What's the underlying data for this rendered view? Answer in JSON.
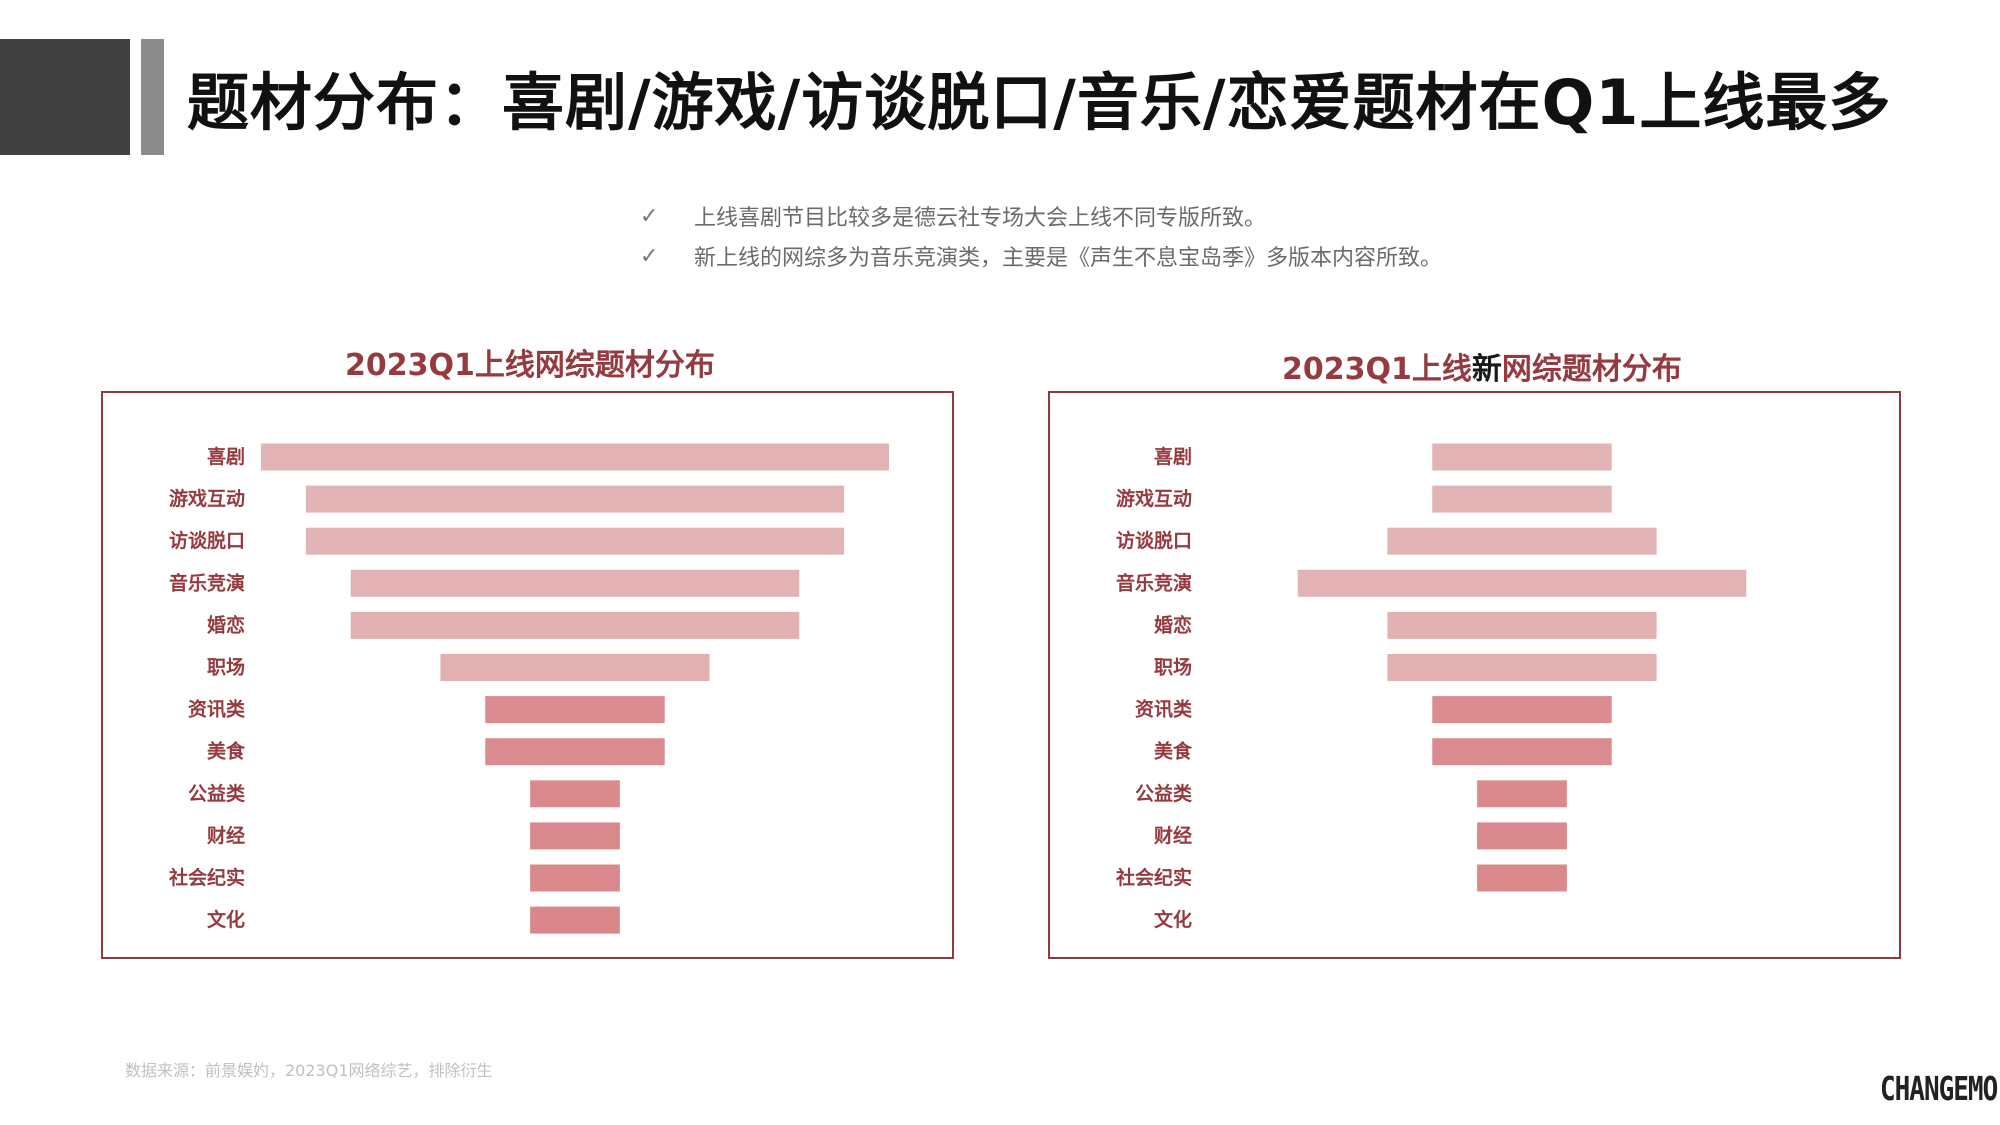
{
  "header": {
    "title": "题材分布：喜剧/游戏/访谈脱口/音乐/恋爱题材在Q1上线最多"
  },
  "bullets": [
    {
      "mark": "✓",
      "text": "上线喜剧节目比较多是德云社专场大会上线不同专版所致。"
    },
    {
      "mark": "✓",
      "text": "新上线的网综多为音乐竞演类，主要是《声生不息宝岛季》多版本内容所致。"
    }
  ],
  "colors": {
    "accent": "#953a3f",
    "bar_light": "#e0aeaf",
    "bar_dark": "#d9878b",
    "title_block": "#404040",
    "title_stripe": "#8c8c8c"
  },
  "chart_titles": {
    "left": "2023Q1上线网综题材分布",
    "right_prefix": "2023Q1上线",
    "right_highlight": "新",
    "right_suffix": "网综题材分布"
  },
  "chart_data": [
    {
      "type": "bar",
      "orientation": "horizontal-centered-funnel",
      "title": "2023Q1上线网综题材分布",
      "categories": [
        "喜剧",
        "游戏互动",
        "访谈脱口",
        "音乐竞演",
        "婚恋",
        "职场",
        "资讯类",
        "美食",
        "公益类",
        "财经",
        "社会纪实",
        "文化"
      ],
      "values": [
        14,
        12,
        12,
        10,
        10,
        6,
        4,
        4,
        2,
        2,
        2,
        2
      ],
      "value_note": "relative values estimated from bar widths; no axis printed"
    },
    {
      "type": "bar",
      "orientation": "horizontal-centered-funnel",
      "title": "2023Q1上线新网综题材分布",
      "categories": [
        "喜剧",
        "游戏互动",
        "访谈脱口",
        "音乐竞演",
        "婚恋",
        "职场",
        "资讯类",
        "美食",
        "公益类",
        "财经",
        "社会纪实",
        "文化"
      ],
      "values": [
        4,
        4,
        6,
        10,
        6,
        6,
        4,
        4,
        2,
        2,
        2,
        0
      ],
      "value_note": "relative values estimated from bar widths; no axis printed"
    }
  ],
  "footer": {
    "source": "数据来源：前景娱妁，2023Q1网络综艺，排除衍生",
    "logo": "CHANGEMO"
  }
}
